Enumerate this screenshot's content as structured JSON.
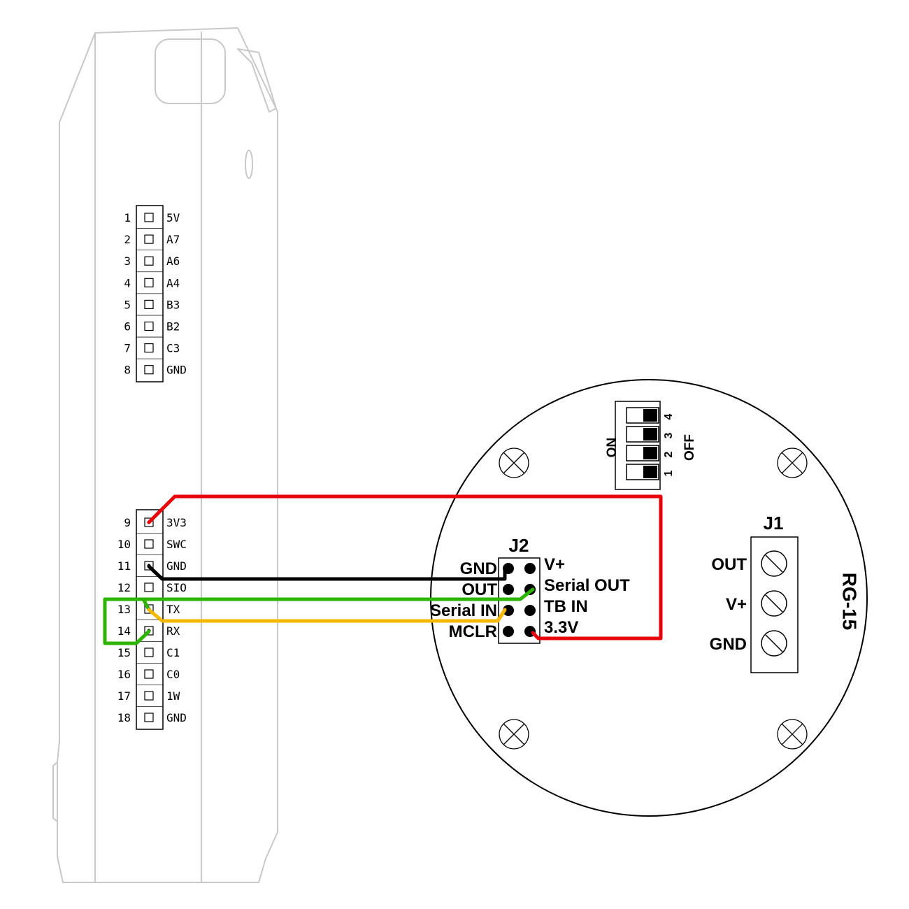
{
  "left_device": {
    "pins_top": [
      {
        "num": "1",
        "label": "5V"
      },
      {
        "num": "2",
        "label": "A7"
      },
      {
        "num": "3",
        "label": "A6"
      },
      {
        "num": "4",
        "label": "A4"
      },
      {
        "num": "5",
        "label": "B3"
      },
      {
        "num": "6",
        "label": "B2"
      },
      {
        "num": "7",
        "label": "C3"
      },
      {
        "num": "8",
        "label": "GND"
      }
    ],
    "pins_bottom": [
      {
        "num": "9",
        "label": "3V3"
      },
      {
        "num": "10",
        "label": "SWC"
      },
      {
        "num": "11",
        "label": "GND"
      },
      {
        "num": "12",
        "label": "SIO"
      },
      {
        "num": "13",
        "label": "TX"
      },
      {
        "num": "14",
        "label": "RX"
      },
      {
        "num": "15",
        "label": "C1"
      },
      {
        "num": "16",
        "label": "C0"
      },
      {
        "num": "17",
        "label": "1W"
      },
      {
        "num": "18",
        "label": "GND"
      }
    ]
  },
  "sensor": {
    "name": "RG-15",
    "dip": {
      "on_label": "ON",
      "off_label": "OFF",
      "numbers": [
        "4",
        "3",
        "2",
        "1"
      ]
    },
    "j2": {
      "title": "J2",
      "left_labels": [
        "GND",
        "OUT",
        "Serial IN",
        "MCLR"
      ],
      "right_labels": [
        "V+",
        "Serial OUT",
        "TB IN",
        "3.3V"
      ]
    },
    "j1": {
      "title": "J1",
      "labels": [
        "OUT",
        "V+",
        "GND"
      ]
    }
  },
  "wires": [
    {
      "name": "3v3-wire",
      "color": "#e8000b"
    },
    {
      "name": "gnd-wire",
      "color": "#000000"
    },
    {
      "name": "tx-wire",
      "color": "#2db400"
    },
    {
      "name": "rx-wire",
      "color": "#f5b800"
    }
  ]
}
